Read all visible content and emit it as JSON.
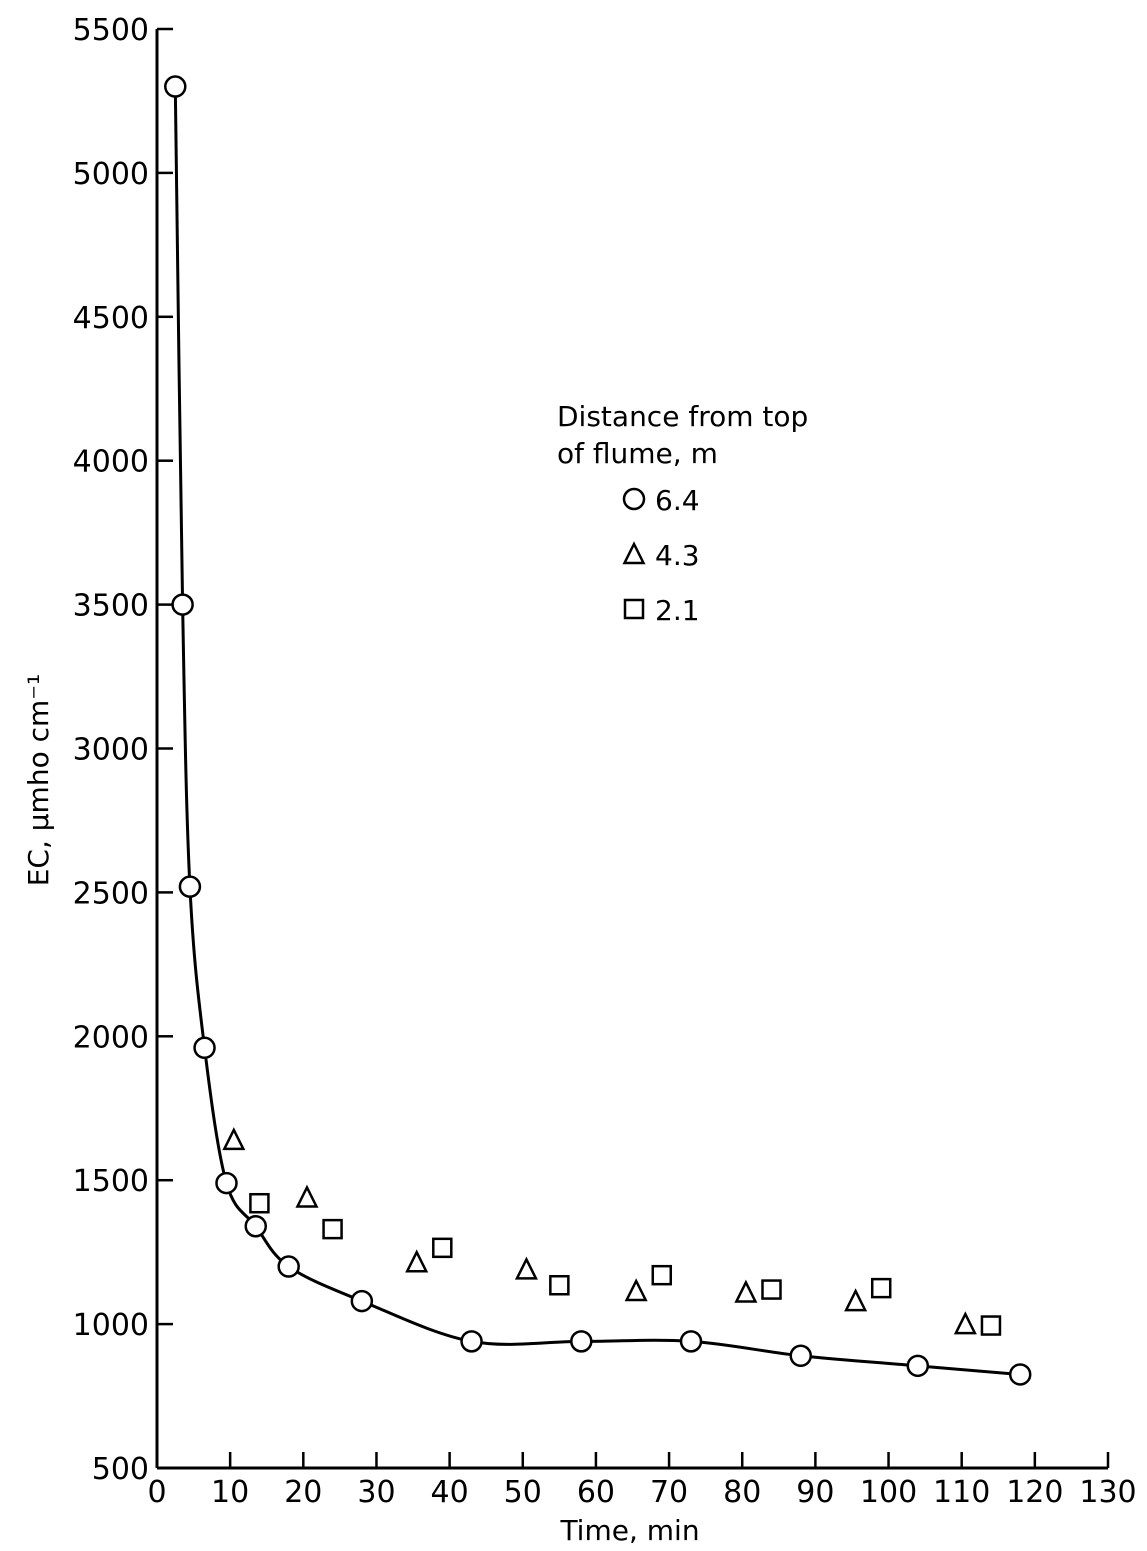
{
  "chart_data": {
    "type": "scatter",
    "xlabel": "Time, min",
    "ylabel": "EC, μmho cm⁻¹",
    "xlim": [
      0,
      130
    ],
    "ylim": [
      500,
      5500
    ],
    "x_ticks": [
      "0",
      "10",
      "20",
      "30",
      "40",
      "50",
      "60",
      "70",
      "80",
      "90",
      "100",
      "110",
      "120",
      "130"
    ],
    "y_ticks": [
      "500",
      "1000",
      "1500",
      "2000",
      "2500",
      "3000",
      "3500",
      "4000",
      "4500",
      "5000",
      "5500"
    ],
    "legend": {
      "title": [
        "Distance from top",
        "of flume, m"
      ],
      "placement": "upper-middle-right"
    },
    "series": [
      {
        "name": "6.4",
        "marker": "circle",
        "fitted_line": true,
        "points": [
          [
            2.5,
            5300
          ],
          [
            3.5,
            3500
          ],
          [
            4.5,
            2520
          ],
          [
            6.5,
            1960
          ],
          [
            9.5,
            1490
          ],
          [
            13.5,
            1340
          ],
          [
            18,
            1200
          ],
          [
            28,
            1080
          ],
          [
            43,
            940
          ],
          [
            58,
            940
          ],
          [
            73,
            940
          ],
          [
            88,
            890
          ],
          [
            104,
            855
          ],
          [
            118,
            825
          ]
        ]
      },
      {
        "name": "4.3",
        "marker": "triangle",
        "points": [
          [
            10.5,
            1640
          ],
          [
            20.5,
            1440
          ],
          [
            35.5,
            1215
          ],
          [
            50.5,
            1190
          ],
          [
            65.5,
            1115
          ],
          [
            80.5,
            1110
          ],
          [
            95.5,
            1080
          ],
          [
            110.5,
            1000
          ]
        ]
      },
      {
        "name": "2.1",
        "marker": "square",
        "points": [
          [
            14,
            1420
          ],
          [
            24,
            1330
          ],
          [
            39,
            1265
          ],
          [
            55,
            1135
          ],
          [
            69,
            1170
          ],
          [
            84,
            1120
          ],
          [
            99,
            1125
          ],
          [
            114,
            995
          ]
        ]
      }
    ]
  }
}
